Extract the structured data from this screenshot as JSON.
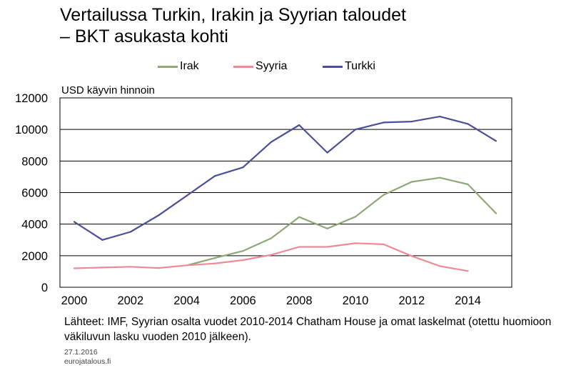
{
  "header": {
    "title_line1": "Vertailussa Turkin, Irakin ja Syyrian taloudet",
    "title_line2": "– BKT asukasta kohti"
  },
  "chart_data": {
    "type": "line",
    "ylabel": "USD käyvin hinnoin",
    "xlabel": "",
    "xlim": [
      2000,
      2015
    ],
    "ylim": [
      0,
      12000
    ],
    "x_ticks": [
      2000,
      2002,
      2004,
      2006,
      2008,
      2010,
      2012,
      2014
    ],
    "y_ticks": [
      0,
      2000,
      4000,
      6000,
      8000,
      10000,
      12000
    ],
    "grid": "horizontal",
    "legend_position": "top",
    "series": [
      {
        "name": "Irak",
        "color": "#8fa876",
        "points": [
          [
            2004,
            1380
          ],
          [
            2005,
            1850
          ],
          [
            2006,
            2300
          ],
          [
            2007,
            3100
          ],
          [
            2008,
            4450
          ],
          [
            2009,
            3720
          ],
          [
            2010,
            4470
          ],
          [
            2011,
            5850
          ],
          [
            2012,
            6680
          ],
          [
            2013,
            6940
          ],
          [
            2014,
            6520
          ],
          [
            2015,
            4680
          ]
        ]
      },
      {
        "name": "Syyria",
        "color": "#ee8a95",
        "points": [
          [
            2000,
            1200
          ],
          [
            2001,
            1250
          ],
          [
            2002,
            1300
          ],
          [
            2003,
            1220
          ],
          [
            2004,
            1390
          ],
          [
            2005,
            1510
          ],
          [
            2006,
            1720
          ],
          [
            2007,
            2050
          ],
          [
            2008,
            2560
          ],
          [
            2009,
            2560
          ],
          [
            2010,
            2790
          ],
          [
            2011,
            2720
          ],
          [
            2012,
            1980
          ],
          [
            2013,
            1340
          ],
          [
            2014,
            1030
          ]
        ]
      },
      {
        "name": "Turkki",
        "color": "#4a4f98",
        "points": [
          [
            2000,
            4150
          ],
          [
            2001,
            3000
          ],
          [
            2002,
            3510
          ],
          [
            2003,
            4560
          ],
          [
            2004,
            5800
          ],
          [
            2005,
            7050
          ],
          [
            2006,
            7600
          ],
          [
            2007,
            9200
          ],
          [
            2008,
            10280
          ],
          [
            2009,
            8530
          ],
          [
            2010,
            10000
          ],
          [
            2011,
            10440
          ],
          [
            2012,
            10500
          ],
          [
            2013,
            10820
          ],
          [
            2014,
            10350
          ],
          [
            2015,
            9270
          ]
        ]
      }
    ]
  },
  "footer": {
    "sources": "Lähteet: IMF, Syyrian osalta vuodet 2010-2014 Chatham House ja omat laskelmat (otettu huomioon väkiluvun lasku vuoden 2010 jälkeen).",
    "date": "27.1.2016",
    "site": "eurojatalous.fi"
  }
}
